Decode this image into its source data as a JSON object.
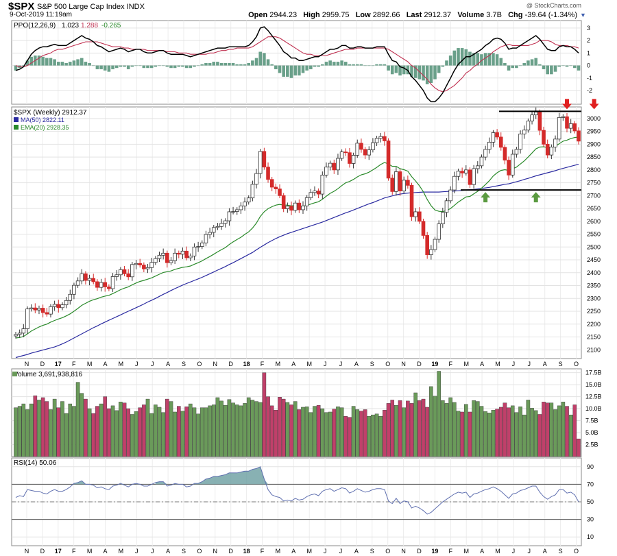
{
  "header": {
    "symbol": "$SPX",
    "name": "S&P 500 Large Cap Index INDX",
    "date": "9-Oct-2019 11:19am",
    "open_label": "Open",
    "open": "2944.23",
    "high_label": "High",
    "high": "2959.75",
    "low_label": "Low",
    "low": "2892.66",
    "last_label": "Last",
    "last": "2912.37",
    "volume_label": "Volume",
    "volume": "3.7B",
    "chg_label": "Chg",
    "chg": "-39.64 (-1.34%)",
    "credit": "@ StockCharts.com",
    "menu_icon": "triangle-down-icon"
  },
  "colors": {
    "up": "#4d8a4d",
    "down": "#d42a2a",
    "volume_up": "#6a9a5a",
    "volume_down": "#c0406a",
    "ma50": "#2a2aa0",
    "ema20": "#2a8a2a",
    "ppo": "#000000",
    "ppo_signal": "#c03050",
    "histogram": "#6aa08a",
    "rsi": "#6070b0",
    "rsi_fill": "#6a9ea0",
    "arrow_down": "#e02020",
    "arrow_up": "#5a9a40"
  },
  "panels": {
    "ppo": {
      "legend_name": "PPO(12,26,9)",
      "legend_ppo": "1.023",
      "legend_signal": "1.288",
      "legend_hist": "-0.265",
      "yticks": [
        "3",
        "2",
        "1",
        "0",
        "-1",
        "-2"
      ]
    },
    "price": {
      "legend_name": "$SPX (Weekly) 2912.37",
      "legend_ma": "MA(50) 2822.11",
      "legend_ema": "EMA(20) 2928.35",
      "yticks": [
        "3000",
        "2950",
        "2900",
        "2850",
        "2800",
        "2750",
        "2700",
        "2650",
        "2600",
        "2550",
        "2500",
        "2450",
        "2400",
        "2350",
        "2300",
        "2250",
        "2200",
        "2150",
        "2100"
      ]
    },
    "volume": {
      "legend": "Volume 3,691,938,816",
      "yticks": [
        "17.5B",
        "15.0B",
        "12.5B",
        "10.0B",
        "7.5B",
        "5.0B",
        "2.5B"
      ]
    },
    "rsi": {
      "legend": "RSI(14) 50.06",
      "yticks": [
        "90",
        "70",
        "50",
        "30",
        "10"
      ]
    }
  },
  "x_axis": {
    "labels": [
      "N",
      "D",
      "17",
      "F",
      "M",
      "A",
      "M",
      "J",
      "J",
      "A",
      "S",
      "O",
      "N",
      "D",
      "18",
      "F",
      "M",
      "A",
      "M",
      "J",
      "J",
      "A",
      "S",
      "O",
      "N",
      "D",
      "19",
      "F",
      "M",
      "A",
      "M",
      "J",
      "J",
      "A",
      "S",
      "O"
    ]
  },
  "annotations": {
    "resistance_level": 3028,
    "support_level": 2722,
    "down_arrows": [
      "2019-07-29",
      "2019-09-16"
    ],
    "up_arrows": [
      "2019-03-04",
      "2019-06-03"
    ]
  },
  "chart_data": {
    "type": "candlestick",
    "interval": "weekly",
    "start_date": "2016-11-07",
    "close": [
      2160,
      2165,
      2182,
      2259,
      2263,
      2255,
      2262,
      2245,
      2239,
      2268,
      2277,
      2264,
      2275,
      2292,
      2316,
      2351,
      2368,
      2396,
      2370,
      2378,
      2365,
      2343,
      2362,
      2345,
      2338,
      2385,
      2392,
      2412,
      2396,
      2384,
      2432,
      2436,
      2430,
      2415,
      2420,
      2440,
      2455,
      2468,
      2476,
      2439,
      2447,
      2476,
      2472,
      2484,
      2458,
      2465,
      2500,
      2502,
      2516,
      2549,
      2557,
      2576,
      2580,
      2592,
      2602,
      2637,
      2638,
      2645,
      2660,
      2675,
      2691,
      2744,
      2786,
      2872,
      2811,
      2763,
      2733,
      2726,
      2700,
      2649,
      2659,
      2643,
      2671,
      2645,
      2660,
      2692,
      2712,
      2718,
      2706,
      2780,
      2811,
      2826,
      2800,
      2845,
      2870,
      2867,
      2825,
      2857,
      2904,
      2880,
      2858,
      2878,
      2906,
      2923,
      2930,
      2913,
      2768,
      2716,
      2793,
      2718,
      2760,
      2740,
      2618,
      2637,
      2600,
      2545,
      2470,
      2490,
      2530,
      2590,
      2635,
      2680,
      2722,
      2775,
      2795,
      2788,
      2800,
      2743,
      2805,
      2816,
      2850,
      2880,
      2908,
      2945,
      2928,
      2888,
      2838,
      2780,
      2861,
      2880,
      2940,
      2955,
      2990,
      3014,
      3025,
      2954,
      2900,
      2858,
      2889,
      2920,
      3004,
      3007,
      2962,
      2980,
      2952,
      2912
    ],
    "ma50": [
      2070,
      2074,
      2078,
      2082,
      2087,
      2091,
      2095,
      2099,
      2103,
      2107,
      2111,
      2117,
      2123,
      2130,
      2138,
      2146,
      2154,
      2162,
      2170,
      2178,
      2186,
      2193,
      2201,
      2208,
      2215,
      2222,
      2229,
      2236,
      2243,
      2250,
      2257,
      2264,
      2271,
      2278,
      2286,
      2293,
      2300,
      2308,
      2316,
      2323,
      2331,
      2338,
      2345,
      2352,
      2358,
      2364,
      2370,
      2376,
      2382,
      2389,
      2396,
      2403,
      2410,
      2417,
      2424,
      2432,
      2439,
      2447,
      2455,
      2463,
      2471,
      2479,
      2489,
      2499,
      2508,
      2517,
      2525,
      2533,
      2540,
      2546,
      2552,
      2557,
      2562,
      2567,
      2572,
      2577,
      2582,
      2587,
      2592,
      2597,
      2603,
      2609,
      2615,
      2621,
      2627,
      2633,
      2638,
      2644,
      2650,
      2656,
      2662,
      2668,
      2673,
      2679,
      2685,
      2691,
      2695,
      2699,
      2703,
      2706,
      2708,
      2710,
      2711,
      2712,
      2713,
      2714,
      2714,
      2714,
      2714,
      2714,
      2715,
      2716,
      2717,
      2718,
      2719,
      2720,
      2722,
      2723,
      2724,
      2726,
      2728,
      2730,
      2732,
      2735,
      2738,
      2741,
      2744,
      2746,
      2750,
      2754,
      2758,
      2763,
      2767,
      2772,
      2777,
      2781,
      2785,
      2789,
      2793,
      2797,
      2802,
      2806,
      2810,
      2814,
      2818,
      2822
    ],
    "ema20": [
      2146,
      2148,
      2152,
      2162,
      2173,
      2181,
      2189,
      2195,
      2200,
      2208,
      2214,
      2220,
      2225,
      2232,
      2240,
      2250,
      2261,
      2273,
      2281,
      2289,
      2295,
      2299,
      2305,
      2309,
      2312,
      2319,
      2326,
      2334,
      2340,
      2345,
      2353,
      2360,
      2366,
      2370,
      2375,
      2380,
      2387,
      2394,
      2401,
      2404,
      2407,
      2413,
      2417,
      2421,
      2423,
      2426,
      2433,
      2439,
      2446,
      2455,
      2463,
      2472,
      2481,
      2490,
      2498,
      2510,
      2520,
      2529,
      2538,
      2549,
      2559,
      2574,
      2593,
      2619,
      2637,
      2649,
      2657,
      2663,
      2666,
      2663,
      2663,
      2660,
      2662,
      2659,
      2659,
      2662,
      2667,
      2672,
      2676,
      2686,
      2698,
      2709,
      2717,
      2727,
      2739,
      2750,
      2755,
      2763,
      2773,
      2781,
      2785,
      2791,
      2800,
      2810,
      2821,
      2829,
      2823,
      2814,
      2814,
      2805,
      2801,
      2795,
      2774,
      2757,
      2738,
      2715,
      2685,
      2661,
      2644,
      2639,
      2638,
      2642,
      2650,
      2662,
      2675,
      2685,
      2695,
      2697,
      2707,
      2717,
      2729,
      2743,
      2758,
      2776,
      2789,
      2798,
      2801,
      2798,
      2804,
      2811,
      2823,
      2835,
      2850,
      2866,
      2882,
      2889,
      2890,
      2887,
      2887,
      2891,
      2902,
      2912,
      2916,
      2922,
      2926,
      2928
    ],
    "volume_billions": [
      10.2,
      10.5,
      11,
      9.8,
      11,
      12.7,
      11.8,
      12.3,
      11.5,
      9.8,
      12,
      10.2,
      11.5,
      9,
      11,
      10.5,
      15.5,
      13.2,
      12,
      10,
      9,
      10.5,
      11,
      12.5,
      10,
      10.6,
      9.6,
      11.4,
      11.2,
      10,
      8.8,
      9.4,
      10.2,
      10.8,
      12,
      9,
      10.8,
      10.3,
      9.2,
      12,
      11.5,
      9.3,
      10.5,
      9.5,
      10.4,
      11,
      10.2,
      8.9,
      10.2,
      10.2,
      10.6,
      10.8,
      12.3,
      11.6,
      10.7,
      11.9,
      11.2,
      10.8,
      10.6,
      11.1,
      12.3,
      11.8,
      11.5,
      11.3,
      17.5,
      12.5,
      10.6,
      9.7,
      12.4,
      12,
      11.3,
      10.8,
      11.5,
      9.8,
      10.3,
      10.4,
      9.2,
      10.5,
      10.7,
      10,
      9.2,
      9.3,
      9.9,
      10.4,
      10.2,
      8.4,
      8.2,
      10.5,
      9.8,
      9.5,
      9.8,
      8.4,
      8.7,
      8.9,
      8.4,
      9.7,
      11.1,
      11.8,
      10.7,
      11.7,
      10.2,
      11.6,
      11.1,
      13.3,
      11.7,
      12,
      10.3,
      14.6,
      12.6,
      17.8,
      11.7,
      11.1,
      12.3,
      11.3,
      9.5,
      9.3,
      10.9,
      9.3,
      11.7,
      11.5,
      10.5,
      9.4,
      9.1,
      9.7,
      9.9,
      10.3,
      11.2,
      10.2,
      10.6,
      9.2,
      10.4,
      8.7,
      11.8,
      10.1,
      9.6,
      8.8,
      11.4,
      11.2,
      11.2,
      9.8,
      10.6,
      11.4,
      10.5,
      8.7,
      10.8,
      3.7
    ],
    "rsi": [
      55,
      57,
      56,
      64,
      63,
      62,
      62,
      60,
      59,
      62,
      64,
      62,
      62,
      64,
      67,
      71,
      72,
      74,
      70,
      70,
      69,
      66,
      67,
      65,
      64,
      68,
      69,
      71,
      69,
      67,
      70,
      71,
      70,
      68,
      68,
      70,
      72,
      73,
      73,
      68,
      69,
      71,
      70,
      70,
      67,
      68,
      71,
      71,
      73,
      76,
      77,
      79,
      79,
      80,
      81,
      83,
      83,
      83,
      84,
      85,
      85,
      87,
      88,
      90,
      76,
      64,
      58,
      56,
      55,
      51,
      52,
      51,
      54,
      52,
      53,
      56,
      58,
      59,
      57,
      62,
      64,
      65,
      62,
      64,
      66,
      65,
      60,
      62,
      65,
      63,
      61,
      62,
      64,
      65,
      65,
      64,
      51,
      48,
      54,
      48,
      51,
      50,
      43,
      45,
      43,
      40,
      36,
      38,
      42,
      46,
      50,
      53,
      56,
      59,
      61,
      60,
      61,
      55,
      59,
      60,
      62,
      64,
      65,
      67,
      65,
      62,
      58,
      54,
      59,
      60,
      63,
      64,
      66,
      68,
      68,
      61,
      56,
      53,
      56,
      58,
      64,
      64,
      60,
      61,
      58,
      50
    ],
    "ppo": [
      -0.4,
      -0.3,
      -0.1,
      0.4,
      0.9,
      1.2,
      1.4,
      1.5,
      1.5,
      1.6,
      1.7,
      1.6,
      1.6,
      1.6,
      1.8,
      2,
      2.2,
      2.4,
      2.2,
      2.1,
      1.9,
      1.6,
      1.5,
      1.3,
      1.1,
      1.2,
      1.3,
      1.4,
      1.3,
      1.1,
      1.2,
      1.3,
      1.3,
      1.1,
      1,
      1,
      1.1,
      1.2,
      1.2,
      1,
      0.9,
      0.9,
      0.9,
      0.9,
      0.8,
      0.7,
      0.8,
      0.9,
      1,
      1.1,
      1.2,
      1.3,
      1.4,
      1.4,
      1.4,
      1.5,
      1.5,
      1.5,
      1.5,
      1.5,
      1.6,
      1.9,
      2.3,
      3,
      3.1,
      2.8,
      2.4,
      2,
      1.6,
      1.1,
      0.9,
      0.6,
      0.6,
      0.4,
      0.4,
      0.5,
      0.6,
      0.7,
      0.7,
      0.9,
      1.1,
      1.3,
      1.3,
      1.4,
      1.6,
      1.6,
      1.4,
      1.4,
      1.5,
      1.5,
      1.4,
      1.4,
      1.4,
      1.5,
      1.5,
      1.5,
      0.9,
      0.4,
      0.3,
      -0.1,
      -0.2,
      -0.4,
      -0.9,
      -1.2,
      -1.6,
      -2,
      -2.6,
      -2.9,
      -2.9,
      -2.6,
      -2.2,
      -1.6,
      -1,
      -0.4,
      0.1,
      0.4,
      0.7,
      0.7,
      0.9,
      1.1,
      1.3,
      1.6,
      1.8,
      2.1,
      2.2,
      2.1,
      1.8,
      1.3,
      1.4,
      1.4,
      1.6,
      1.8,
      2,
      2.2,
      2.4,
      2.1,
      1.7,
      1.3,
      1.2,
      1.2,
      1.5,
      1.6,
      1.5,
      1.5,
      1.3,
      1
    ],
    "ppo_signal": [
      0,
      -0.1,
      -0.1,
      0,
      0.2,
      0.4,
      0.6,
      0.8,
      0.9,
      1,
      1.2,
      1.3,
      1.3,
      1.4,
      1.5,
      1.6,
      1.7,
      1.8,
      1.9,
      1.9,
      1.9,
      1.9,
      1.8,
      1.7,
      1.6,
      1.5,
      1.5,
      1.5,
      1.4,
      1.4,
      1.3,
      1.3,
      1.3,
      1.3,
      1.2,
      1.2,
      1.2,
      1.2,
      1.2,
      1.1,
      1.1,
      1.1,
      1,
      1,
      1,
      0.9,
      0.9,
      0.9,
      0.9,
      0.9,
      1,
      1,
      1.1,
      1.2,
      1.2,
      1.3,
      1.3,
      1.4,
      1.4,
      1.4,
      1.4,
      1.5,
      1.7,
      1.9,
      2.1,
      2.3,
      2.3,
      2.3,
      2.2,
      2,
      1.8,
      1.6,
      1.4,
      1.2,
      1,
      0.9,
      0.9,
      0.8,
      0.8,
      0.8,
      0.8,
      0.9,
      1,
      1.1,
      1.2,
      1.3,
      1.3,
      1.3,
      1.4,
      1.4,
      1.4,
      1.4,
      1.4,
      1.4,
      1.4,
      1.4,
      1.3,
      1.1,
      0.9,
      0.7,
      0.5,
      0.3,
      0,
      -0.2,
      -0.5,
      -0.8,
      -1.1,
      -1.5,
      -1.8,
      -2,
      -2.1,
      -2,
      -1.8,
      -1.6,
      -1.3,
      -1,
      -0.6,
      -0.4,
      -0.1,
      0.1,
      0.4,
      0.6,
      0.8,
      1.1,
      1.3,
      1.5,
      1.6,
      1.7,
      1.6,
      1.6,
      1.6,
      1.6,
      1.6,
      1.7,
      1.8,
      2,
      2,
      2,
      1.9,
      1.7,
      1.6,
      1.6,
      1.6,
      1.5,
      1.5,
      1.4
    ]
  }
}
